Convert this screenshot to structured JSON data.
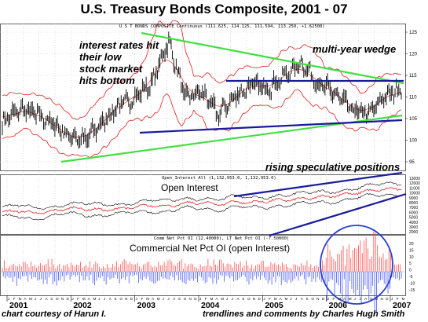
{
  "title": "U.S. Treasury Bonds Composite, 2001 - 07",
  "panels": {
    "price": {
      "label": "U S T BONDS COMPOSITE Continuous (111.625, 114.125, 111.594, 113.250, +1.62500)"
    },
    "open_interest": {
      "label": "Open_Interest_All (1,132,953.0, 1,132,953.0)",
      "big_label": "Open Interest"
    },
    "commercial": {
      "label": "Comm Net Pct OI (12.40000), LT Net Pct OI (-7.50000)",
      "big_label": "Commercial Net Pct OI (open Interest)"
    }
  },
  "annotations": {
    "interest": [
      "interest rates hit",
      "their low",
      "stock market",
      "hits bottom"
    ],
    "wedge": "multi-year wedge",
    "speculative": "rising speculative positions"
  },
  "footer": {
    "left": "chart courtesy of Harun I.",
    "right": "trendlines and comments by Charles Hugh Smith"
  },
  "colors": {
    "price_bars": "#000000",
    "bollinger": "#e02020",
    "wedge_lines": "#3fe03f",
    "trend_lines": "#1a1a9e",
    "circle": "#2a3fcf",
    "positive_bars": "#ff4d4d",
    "negative_bars": "#4455ff"
  },
  "chart_data": [
    {
      "type": "line",
      "name": "price",
      "x": [
        "2001",
        "2001.25",
        "2001.5",
        "2001.75",
        "2002",
        "2002.25",
        "2002.5",
        "2002.75",
        "2003",
        "2003.25",
        "2003.5",
        "2003.75",
        "2004",
        "2004.25",
        "2004.5",
        "2004.75",
        "2005",
        "2005.25",
        "2005.5",
        "2005.75",
        "2006",
        "2006.25",
        "2006.5",
        "2006.75",
        "2007"
      ],
      "series": [
        {
          "values": [
            104,
            107,
            106,
            104,
            101,
            100,
            104,
            108,
            110,
            113,
            123,
            110,
            111,
            106,
            110,
            113,
            112,
            115,
            118,
            113,
            111,
            107,
            106,
            110,
            112
          ]
        }
      ],
      "yticks": [
        95,
        100,
        105,
        110,
        115,
        120,
        125
      ],
      "ylim": [
        93,
        127
      ]
    },
    {
      "type": "line",
      "name": "open_interest",
      "yticks": [
        "13000",
        "12000",
        "11000",
        "10000",
        "9000",
        "8000",
        "7000",
        "6000",
        "5000",
        "4000",
        "3000",
        "2000"
      ]
    },
    {
      "type": "bar",
      "name": "commercial_net_pct_oi",
      "yticks": [
        "20",
        "15",
        "10",
        "5",
        "0",
        "-5",
        "-10",
        "-15"
      ]
    }
  ],
  "x_axis": {
    "years": [
      "2001",
      "2002",
      "2003",
      "2004",
      "2005",
      "2006",
      "2007"
    ],
    "month_letters": [
      "J",
      "F",
      "M",
      "A",
      "M",
      "J",
      "J",
      "A",
      "S",
      "O",
      "N",
      "D"
    ]
  }
}
